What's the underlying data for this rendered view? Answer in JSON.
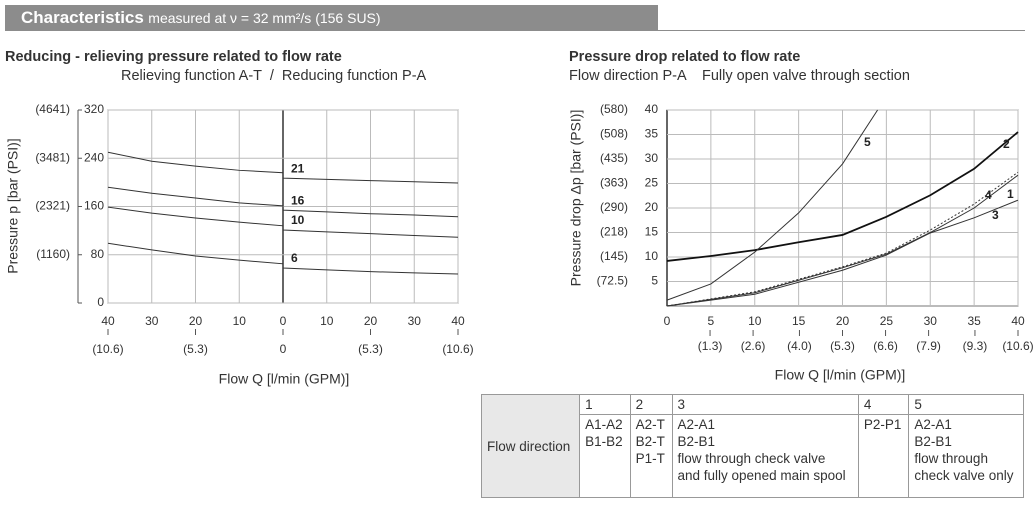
{
  "header": {
    "title": "Characteristics",
    "subtitle": "measured at ν = 32 mm²/s (156 SUS)"
  },
  "chart_data": [
    {
      "type": "line",
      "title": "Reducing - relieving pressure related to flow rate",
      "subtitle": "Relieving function A-T  /  Reducing function P-A",
      "x_label": "Flow Q [l/min (GPM)]",
      "y_label": "Pressure p [bar (PSI)]",
      "x": [
        -40,
        -30,
        -20,
        -10,
        0,
        0,
        10,
        20,
        30,
        40
      ],
      "series": [
        {
          "name": "21",
          "color": "#333333",
          "values": [
            250,
            235,
            227,
            220,
            216,
            207,
            205,
            203,
            201,
            199
          ]
        },
        {
          "name": "16",
          "color": "#333333",
          "values": [
            192,
            182,
            174,
            166,
            161,
            154,
            151,
            148,
            146,
            143
          ]
        },
        {
          "name": "10",
          "color": "#333333",
          "values": [
            159,
            149,
            141,
            134,
            128,
            121,
            118,
            115,
            112,
            109
          ]
        },
        {
          "name": "6",
          "color": "#333333",
          "values": [
            99,
            88,
            78,
            71,
            65,
            58,
            55,
            52,
            50,
            48
          ]
        }
      ],
      "xlim": [
        -40,
        40
      ],
      "xticks": [
        {
          "value": -40,
          "label": "40"
        },
        {
          "value": -30,
          "label": "30"
        },
        {
          "value": -20,
          "label": "20"
        },
        {
          "value": -10,
          "label": "10"
        },
        0,
        10,
        20,
        30,
        40
      ],
      "x2lim": [
        -10.6,
        10.6
      ],
      "x2ticks": [
        {
          "value": -10.6,
          "label": "(10.6)"
        },
        {
          "value": -5.3,
          "label": "(5.3)"
        },
        0,
        {
          "value": 5.3,
          "label": "(5.3)"
        },
        {
          "value": 10.6,
          "label": "(10.6)"
        }
      ],
      "ylim": [
        0,
        320
      ],
      "yticks": [
        0,
        80,
        160,
        240,
        320
      ],
      "y2lim": [
        0,
        4641
      ],
      "y2ticks": [
        {
          "value": 1160,
          "label": "(1160)"
        },
        {
          "value": 2321,
          "label": "(2321)"
        },
        {
          "value": 3481,
          "label": "(3481)"
        },
        {
          "value": 4641,
          "label": "(4641)"
        }
      ],
      "grid": true
    },
    {
      "type": "line",
      "title": "Pressure drop related to flow rate",
      "subtitle": "Flow direction P-A    Fully open valve through section",
      "x_label": "Flow Q [l/min (GPM)]",
      "y_label": "Pressure drop Δp [bar (PSI)]",
      "series": [
        {
          "name": "1",
          "color": "#333333",
          "x": [
            0,
            10,
            20,
            25,
            30,
            35,
            40
          ],
          "values": [
            0,
            2.7,
            7.8,
            10.6,
            15,
            20,
            26.7
          ]
        },
        {
          "name": "2",
          "color": "#111111",
          "line_width": 1.8,
          "x": [
            0,
            5,
            10,
            15,
            20,
            25,
            30,
            35,
            40
          ],
          "values": [
            9.2,
            10.2,
            11.4,
            13,
            14.5,
            18.2,
            22.6,
            28,
            35.5
          ]
        },
        {
          "name": "3",
          "color": "#333333",
          "x": [
            0,
            10,
            20,
            25,
            30,
            35,
            40
          ],
          "values": [
            0,
            2.4,
            7.3,
            10.4,
            14.9,
            18,
            21.6
          ]
        },
        {
          "name": "4",
          "color": "#333333",
          "dash": "2,2",
          "x": [
            0,
            10,
            20,
            25,
            30,
            35,
            40
          ],
          "values": [
            0,
            2.9,
            8,
            10.8,
            15.5,
            20.8,
            27.3
          ]
        },
        {
          "name": "5",
          "color": "#333333",
          "x": [
            0,
            5,
            10,
            15,
            20,
            24
          ],
          "values": [
            1.2,
            4.5,
            11,
            19,
            29,
            40
          ]
        }
      ],
      "xlim": [
        0,
        40
      ],
      "xticks": [
        0,
        5,
        10,
        15,
        20,
        25,
        30,
        35,
        40
      ],
      "x2lim": [
        0,
        10.6
      ],
      "x2ticks": [
        {
          "value": 1.3,
          "label": "(1.3)"
        },
        {
          "value": 2.6,
          "label": "(2.6)"
        },
        {
          "value": 4.0,
          "label": "(4.0)"
        },
        {
          "value": 5.3,
          "label": "(5.3)"
        },
        {
          "value": 6.6,
          "label": "(6.6)"
        },
        {
          "value": 7.9,
          "label": "(7.9)"
        },
        {
          "value": 9.3,
          "label": "(9.3)"
        },
        {
          "value": 10.6,
          "label": "(10.6)"
        }
      ],
      "ylim": [
        0,
        40
      ],
      "yticks": [
        5,
        10,
        15,
        20,
        25,
        30,
        35,
        40
      ],
      "y2lim": [
        0,
        580
      ],
      "y2ticks": [
        {
          "value": 72.5,
          "label": "(72.5)"
        },
        {
          "value": 145,
          "label": "(145)"
        },
        {
          "value": 218,
          "label": "(218)"
        },
        {
          "value": 290,
          "label": "(290)"
        },
        {
          "value": 363,
          "label": "(363)"
        },
        {
          "value": 435,
          "label": "(435)"
        },
        {
          "value": 508,
          "label": "(508)"
        },
        {
          "value": 580,
          "label": "(580)"
        }
      ],
      "grid": true
    }
  ],
  "table": {
    "row_label": "Flow direction",
    "columns": [
      {
        "number": 1,
        "text": [
          "A1-A2",
          "B1-B2"
        ]
      },
      {
        "number": 2,
        "text": [
          "A2-T",
          "B2-T",
          "P1-T"
        ]
      },
      {
        "number": 3,
        "text": [
          "A2-A1",
          "B2-B1",
          "flow through check valve",
          "and fully opened main spool"
        ]
      },
      {
        "number": 4,
        "text": [
          "P2-P1"
        ]
      },
      {
        "number": 5,
        "text": [
          "A2-A1",
          "B2-B1",
          "flow through",
          "check valve only"
        ]
      }
    ]
  }
}
